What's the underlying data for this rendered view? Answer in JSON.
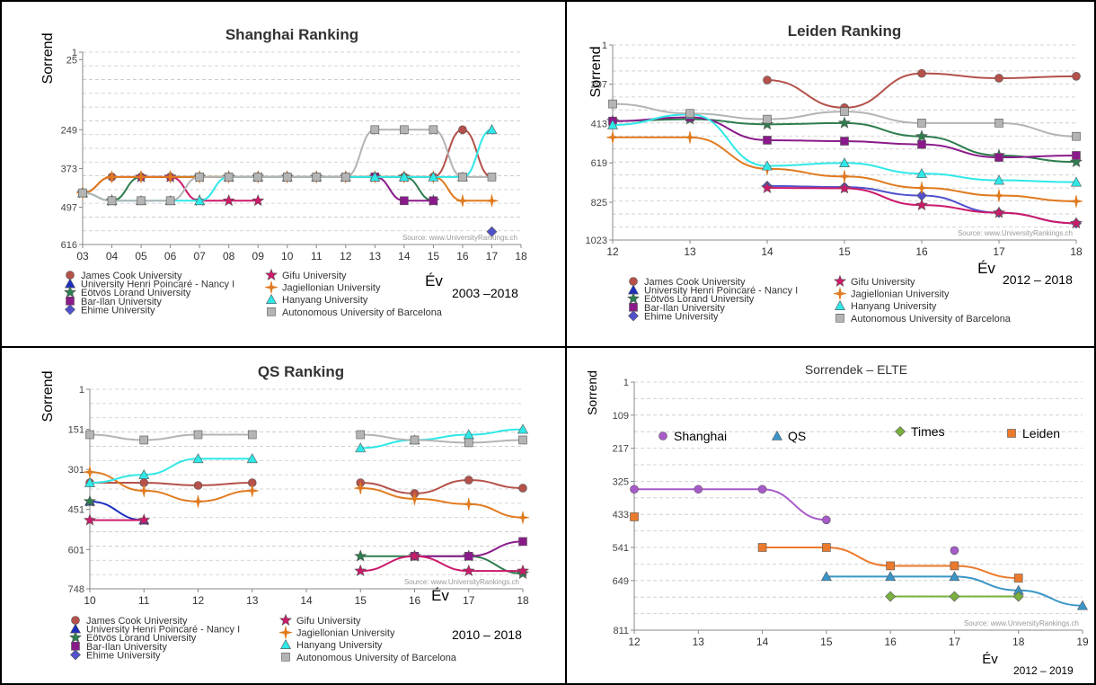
{
  "source_note": "Source: www.UniversityRankings.ch",
  "legend_universities": [
    {
      "name": "James Cook University",
      "color": "#b5514a",
      "marker": "circle"
    },
    {
      "name": "University Henri Poincaré - Nancy I",
      "color": "#1c2fbf",
      "marker": "triangle"
    },
    {
      "name": "Eötvös Lorand University",
      "color": "#2e7d4f",
      "marker": "star"
    },
    {
      "name": "Bar-Ilan University",
      "color": "#8a1a8a",
      "marker": "square"
    },
    {
      "name": "Ehime University",
      "color": "#5151cc",
      "marker": "diamond"
    },
    {
      "name": "Gifu University",
      "color": "#cc1a6a",
      "marker": "star"
    },
    {
      "name": "Jagiellonian University",
      "color": "#e07a1f",
      "marker": "cross"
    },
    {
      "name": "Hanyang University",
      "color": "#2fe8e8",
      "marker": "triangle"
    },
    {
      "name": "Autonomous University of Barcelona",
      "color": "#b4b4b4",
      "marker": "square"
    }
  ],
  "chart_data": [
    {
      "id": "shanghai",
      "type": "line",
      "title": "Shanghai Ranking",
      "ylabel": "Sorrend",
      "xlabel": "Év",
      "period": "2003 –2018",
      "x_ticks": [
        "03",
        "04",
        "05",
        "06",
        "07",
        "08",
        "09",
        "10",
        "11",
        "12",
        "13",
        "14",
        "15",
        "16",
        "17",
        "18"
      ],
      "y_ticks": [
        1,
        25,
        249,
        373,
        497,
        616
      ],
      "series": [
        {
          "name": "James Cook University",
          "x": [
            3,
            4,
            5,
            6,
            7,
            8,
            9,
            10,
            11,
            12,
            13,
            14,
            15,
            16,
            17
          ],
          "y": [
            451,
            400,
            400,
            400,
            400,
            400,
            400,
            400,
            400,
            400,
            400,
            400,
            400,
            249,
            400
          ]
        },
        {
          "name": "Eötvös Lorand University",
          "x": [
            3,
            4,
            5,
            6,
            7,
            8,
            9,
            10,
            11,
            12,
            13,
            14,
            15
          ],
          "y": [
            451,
            476,
            400,
            400,
            400,
            400,
            400,
            400,
            400,
            400,
            400,
            400,
            476
          ]
        },
        {
          "name": "Bar-Ilan University",
          "x": [
            13,
            14,
            15
          ],
          "y": [
            400,
            476,
            476
          ]
        },
        {
          "name": "Ehime University",
          "x": [
            17
          ],
          "y": [
            575
          ]
        },
        {
          "name": "Gifu University",
          "x": [
            5,
            6,
            7,
            8,
            9
          ],
          "y": [
            400,
            400,
            476,
            476,
            476
          ]
        },
        {
          "name": "Jagiellonian University",
          "x": [
            3,
            4,
            5,
            6,
            7,
            8,
            9,
            10,
            11,
            12,
            13,
            14,
            15,
            16,
            17
          ],
          "y": [
            451,
            400,
            400,
            400,
            400,
            400,
            400,
            400,
            400,
            400,
            400,
            400,
            400,
            476,
            476
          ]
        },
        {
          "name": "Hanyang University",
          "x": [
            3,
            4,
            5,
            6,
            7,
            8,
            9,
            10,
            11,
            12,
            13,
            14,
            15,
            16,
            17
          ],
          "y": [
            451,
            476,
            476,
            476,
            476,
            400,
            400,
            400,
            400,
            400,
            400,
            400,
            400,
            400,
            249
          ]
        },
        {
          "name": "Autonomous University of Barcelona",
          "x": [
            3,
            4,
            5,
            6,
            7,
            8,
            9,
            10,
            11,
            12,
            13,
            14,
            15,
            16,
            17
          ],
          "y": [
            451,
            476,
            476,
            476,
            400,
            400,
            400,
            400,
            400,
            400,
            249,
            249,
            249,
            400,
            400
          ]
        }
      ]
    },
    {
      "id": "leiden",
      "type": "line",
      "title": "Leiden Ranking",
      "ylabel": "Sorrend",
      "xlabel": "Év",
      "period": "2012 – 2018",
      "x_ticks": [
        "12",
        "13",
        "14",
        "15",
        "16",
        "17",
        "18"
      ],
      "y_ticks": [
        1,
        207,
        413,
        619,
        825,
        1023
      ],
      "series": [
        {
          "name": "James Cook University",
          "x": [
            14,
            15,
            16,
            17,
            18
          ],
          "y": [
            185,
            330,
            150,
            175,
            165
          ]
        },
        {
          "name": "Eötvös Lorand University",
          "x": [
            12,
            13,
            14,
            15,
            16,
            17,
            18
          ],
          "y": [
            400,
            390,
            417,
            410,
            480,
            580,
            614
          ]
        },
        {
          "name": "Bar-Ilan University",
          "x": [
            12,
            13,
            14,
            15,
            16,
            17,
            18
          ],
          "y": [
            400,
            380,
            500,
            505,
            522,
            590,
            580
          ]
        },
        {
          "name": "Ehime University",
          "x": [
            14,
            15,
            16,
            17,
            18
          ],
          "y": [
            740,
            746,
            790,
            880,
            935
          ]
        },
        {
          "name": "Gifu University",
          "x": [
            14,
            15,
            16,
            17,
            18
          ],
          "y": [
            750,
            752,
            840,
            880,
            935
          ]
        },
        {
          "name": "Jagiellonian University",
          "x": [
            12,
            13,
            14,
            15,
            16,
            17,
            18
          ],
          "y": [
            485,
            485,
            650,
            690,
            750,
            790,
            820
          ]
        },
        {
          "name": "Hanyang University",
          "x": [
            12,
            13,
            14,
            15,
            16,
            17,
            18
          ],
          "y": [
            420,
            365,
            635,
            619,
            675,
            710,
            720
          ]
        },
        {
          "name": "Autonomous University of Barcelona",
          "x": [
            12,
            13,
            14,
            15,
            16,
            17,
            18
          ],
          "y": [
            310,
            360,
            390,
            350,
            410,
            410,
            480
          ]
        }
      ]
    },
    {
      "id": "qs",
      "type": "line",
      "title": "QS Ranking",
      "ylabel": "Sorrend",
      "xlabel": "Év",
      "period": "2010 – 2018",
      "x_ticks": [
        "10",
        "11",
        "12",
        "13",
        "14",
        "15",
        "16",
        "17",
        "18"
      ],
      "y_ticks": [
        1,
        151,
        301,
        451,
        601,
        748
      ],
      "series": [
        {
          "name": "James Cook University",
          "x": [
            10,
            11,
            12,
            13,
            15,
            16,
            17,
            18
          ],
          "y": [
            351,
            351,
            361,
            351,
            351,
            391,
            341,
            371
          ]
        },
        {
          "name": "University Henri Poincaré - Nancy I",
          "x": [
            10,
            11
          ],
          "y": [
            421,
            491
          ]
        },
        {
          "name": "Eötvös Lorand University",
          "x": [
            10,
            15,
            16,
            17,
            18
          ],
          "y": [
            421,
            626,
            626,
            626,
            691
          ]
        },
        {
          "name": "Bar-Ilan University",
          "x": [
            16,
            17,
            18
          ],
          "y": [
            626,
            626,
            571
          ]
        },
        {
          "name": "Gifu University",
          "x": [
            10,
            11,
            15,
            16,
            17,
            18
          ],
          "y": [
            491,
            491,
            681,
            626,
            681,
            681
          ]
        },
        {
          "name": "Jagiellonian University",
          "x": [
            10,
            11,
            12,
            13,
            15,
            16,
            17,
            18
          ],
          "y": [
            311,
            381,
            421,
            381,
            371,
            411,
            431,
            481
          ]
        },
        {
          "name": "Hanyang University",
          "x": [
            10,
            11,
            12,
            13,
            15,
            16,
            17,
            18
          ],
          "y": [
            351,
            321,
            261,
            261,
            221,
            191,
            171,
            151
          ]
        },
        {
          "name": "Autonomous University of Barcelona",
          "x": [
            10,
            11,
            12,
            13,
            15,
            16,
            17,
            18
          ],
          "y": [
            171,
            191,
            171,
            171,
            171,
            191,
            201,
            191
          ]
        }
      ]
    },
    {
      "id": "elte",
      "type": "line",
      "title": "Sorrendek – ELTE",
      "ylabel": "Sorrend",
      "xlabel": "Év",
      "period": "2012 – 2019",
      "x_ticks": [
        "12",
        "13",
        "14",
        "15",
        "16",
        "17",
        "18",
        "19"
      ],
      "y_ticks": [
        1,
        109,
        217,
        325,
        433,
        541,
        649,
        811
      ],
      "series": [
        {
          "name": "Shanghai",
          "color": "#a75bc9",
          "marker": "circle",
          "x": [
            12,
            13,
            14,
            15,
            17
          ],
          "y": [
            351,
            351,
            351,
            451,
            551
          ]
        },
        {
          "name": "QS",
          "color": "#3a96c8",
          "marker": "triangle",
          "x": [
            15,
            16,
            17,
            18,
            19
          ],
          "y": [
            636,
            636,
            636,
            681,
            731
          ]
        },
        {
          "name": "Times",
          "color": "#7ab040",
          "marker": "diamond",
          "x": [
            16,
            17,
            18
          ],
          "y": [
            701,
            701,
            701
          ]
        },
        {
          "name": "Leiden",
          "color": "#ec7a2c",
          "marker": "square",
          "x": [
            12,
            14,
            15,
            16,
            17,
            18
          ],
          "y": [
            441,
            541,
            541,
            601,
            601,
            641
          ]
        }
      ]
    }
  ]
}
